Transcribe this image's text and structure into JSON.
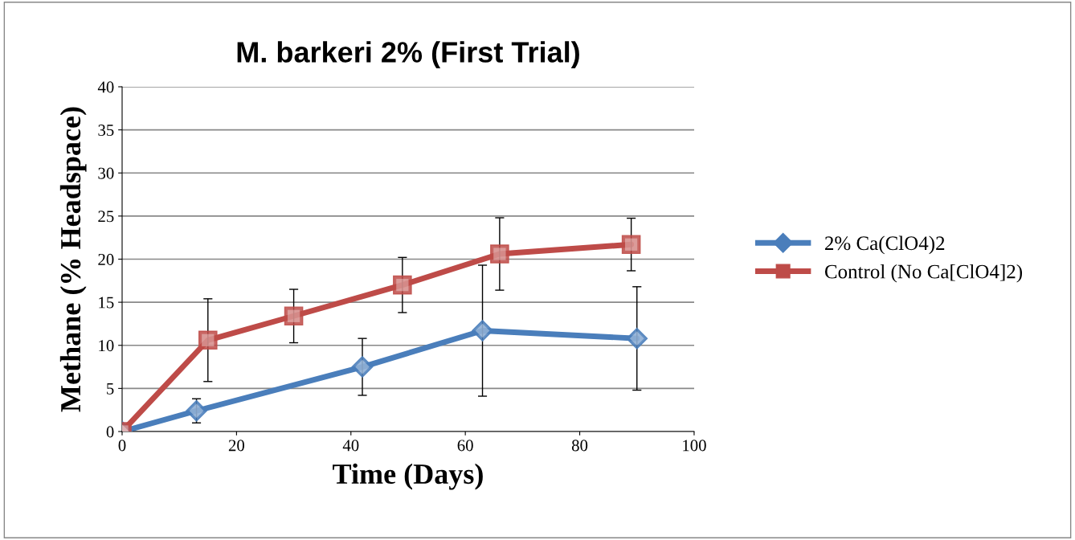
{
  "chart_data": {
    "type": "line",
    "title": "M. barkeri 2% (First Trial)",
    "xlabel": "Time (Days)",
    "ylabel": "Methane (% Headspace)",
    "xlim": [
      0,
      100
    ],
    "xticks": [
      0,
      20,
      40,
      60,
      80,
      100
    ],
    "ylim": [
      0,
      40
    ],
    "yticks": [
      0,
      5,
      10,
      15,
      20,
      25,
      30,
      35,
      40
    ],
    "grid": "y",
    "legend": "right",
    "series": [
      {
        "name": "2% Ca(ClO4)2",
        "color": "#4a7ebb",
        "marker": "diamond",
        "x": [
          0,
          13,
          42,
          63,
          90
        ],
        "values": [
          0,
          2.4,
          7.5,
          11.7,
          10.8
        ],
        "errors": [
          null,
          1.4,
          3.3,
          7.6,
          6.0
        ]
      },
      {
        "name": "Control (No Ca[ClO4]2)",
        "color": "#be4b48",
        "marker": "square",
        "x": [
          0,
          15,
          30,
          49,
          66,
          89
        ],
        "values": [
          0,
          10.6,
          13.4,
          17.0,
          20.6,
          21.7
        ],
        "errors": [
          null,
          4.8,
          3.1,
          3.2,
          4.2,
          3.05
        ]
      }
    ]
  }
}
